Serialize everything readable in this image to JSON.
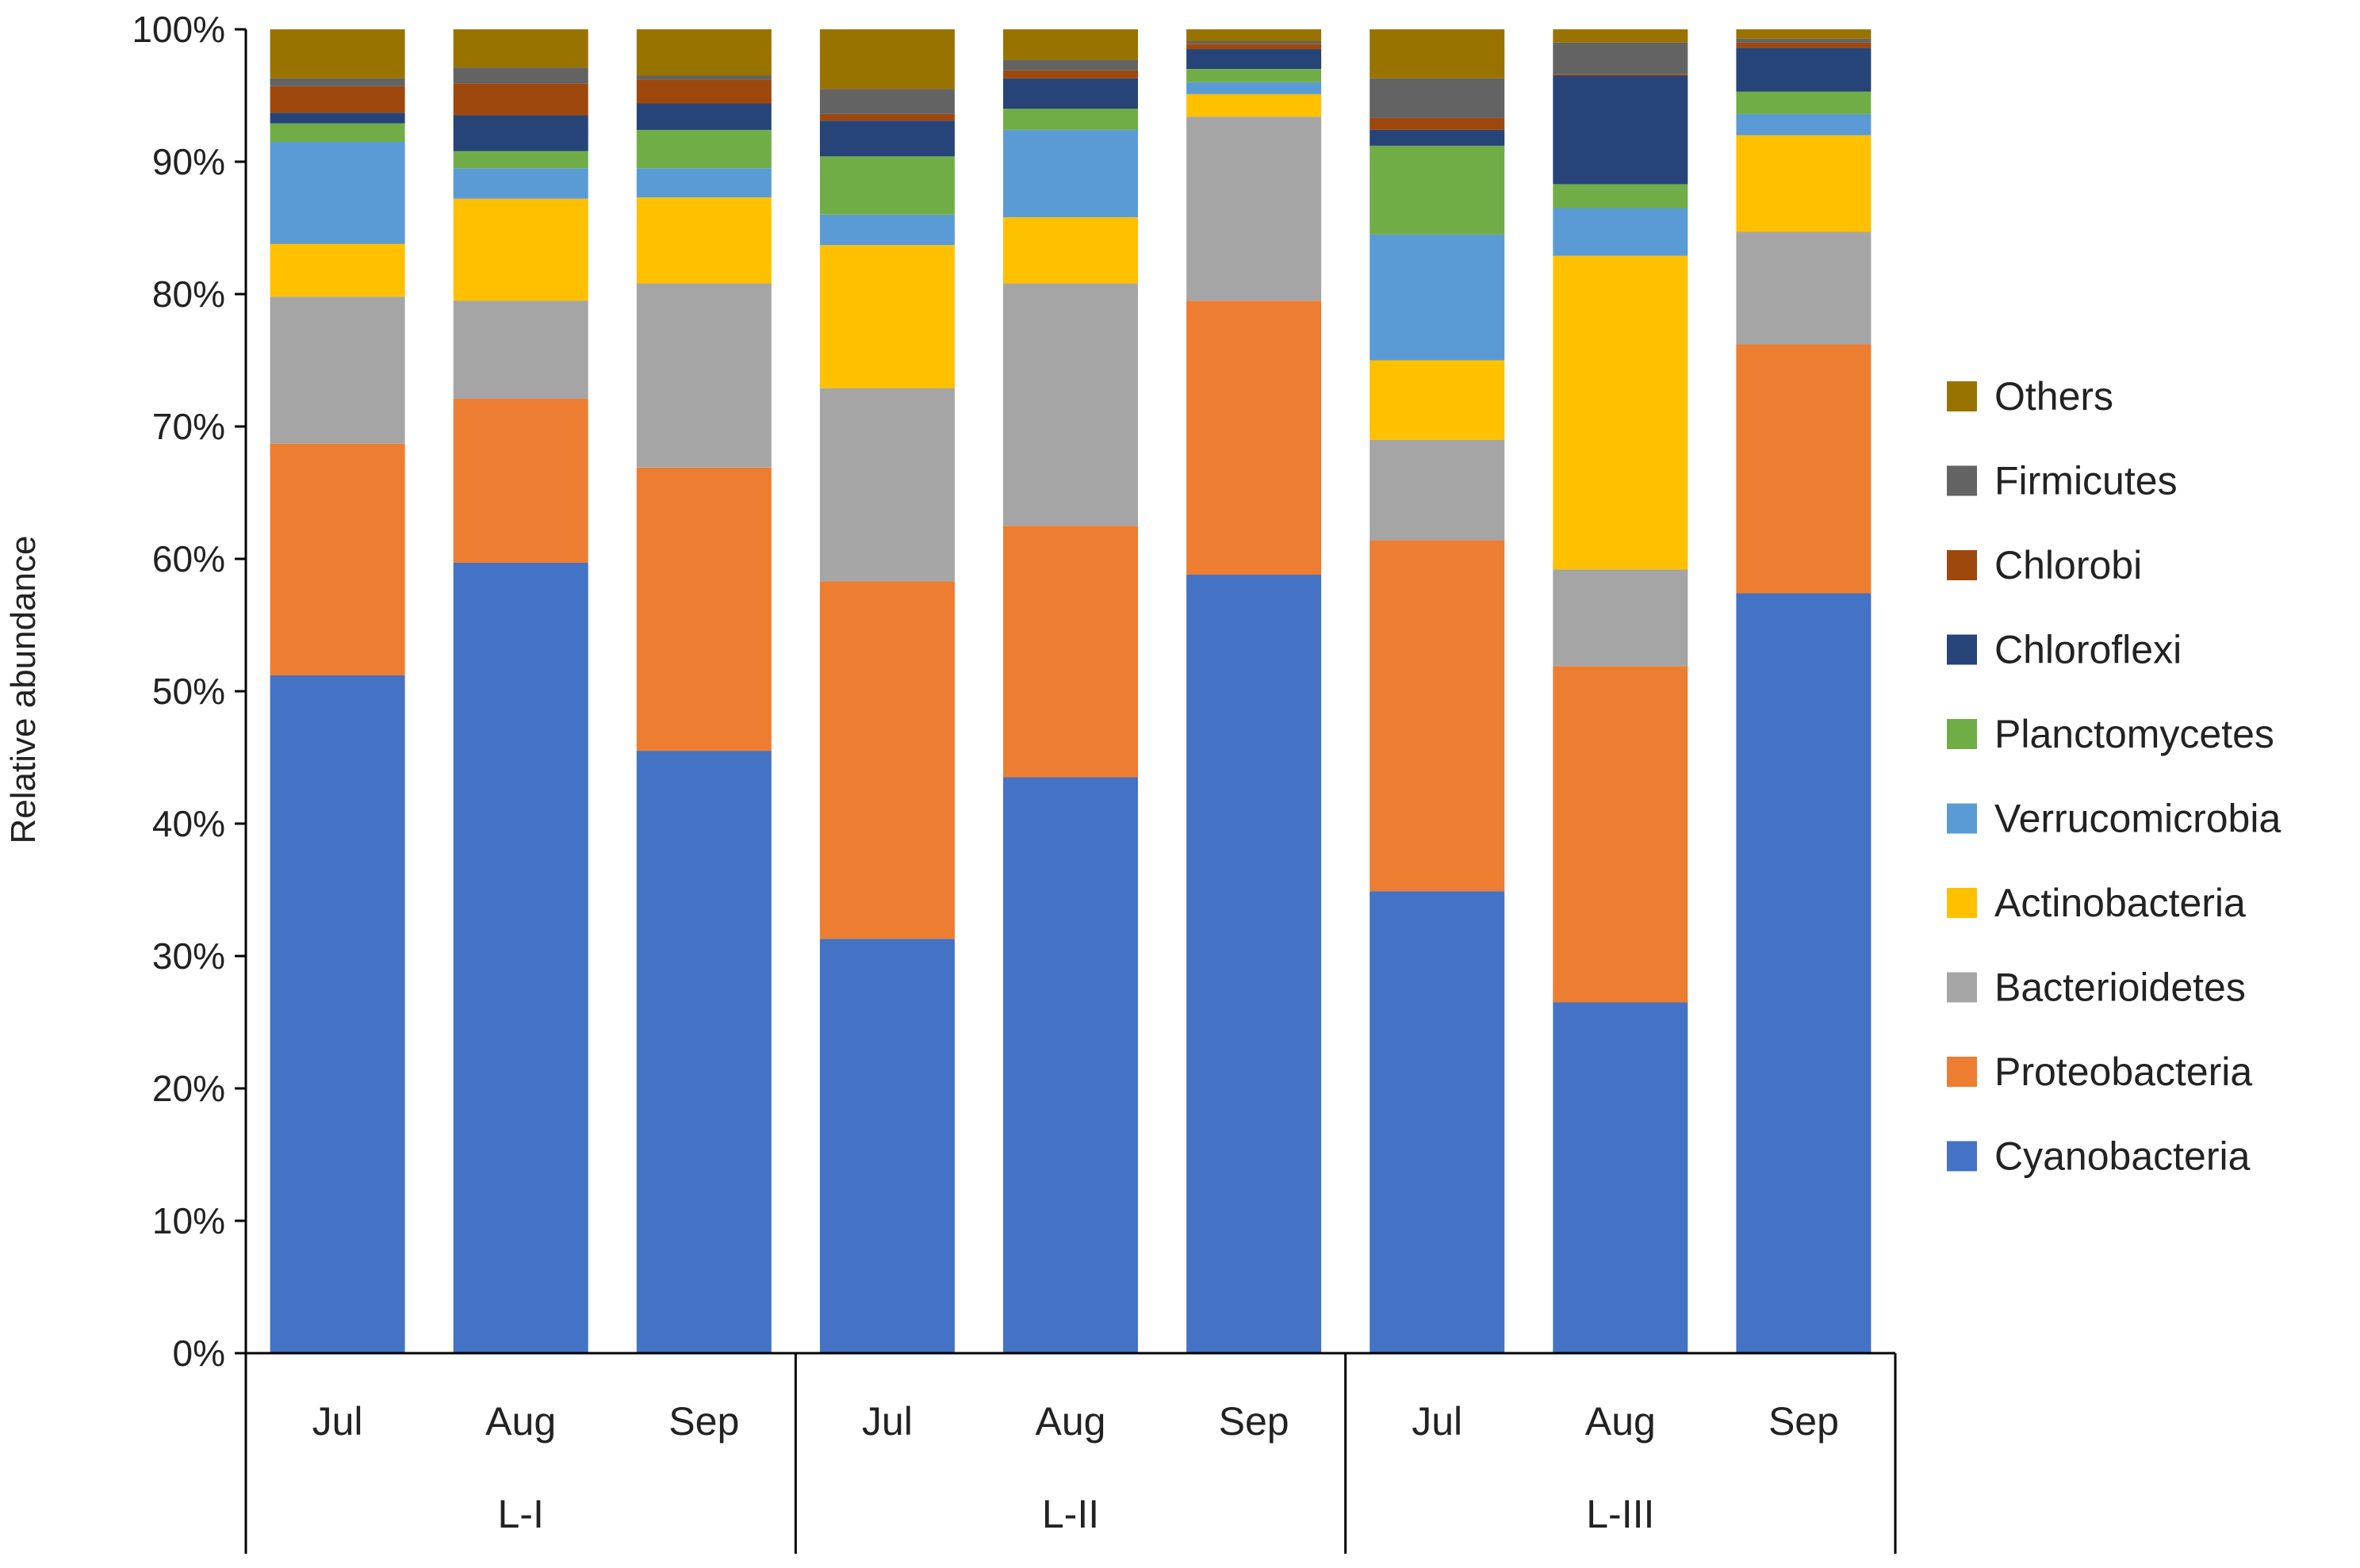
{
  "chart_data": {
    "type": "bar",
    "stacked": true,
    "normalized": true,
    "title": "",
    "xlabel": "",
    "ylabel": "Relative abundance",
    "ylim": [
      0,
      100
    ],
    "yticks": [
      0,
      10,
      20,
      30,
      40,
      50,
      60,
      70,
      80,
      90,
      100
    ],
    "ytick_labels": [
      "0%",
      "10%",
      "20%",
      "30%",
      "40%",
      "50%",
      "60%",
      "70%",
      "80%",
      "90%",
      "100%"
    ],
    "groups": [
      {
        "name": "L-I",
        "categories": [
          "Jul",
          "Aug",
          "Sep"
        ]
      },
      {
        "name": "L-II",
        "categories": [
          "Jul",
          "Aug",
          "Sep"
        ]
      },
      {
        "name": "L-III",
        "categories": [
          "Jul",
          "Aug",
          "Sep"
        ]
      }
    ],
    "categories": [
      "Jul",
      "Aug",
      "Sep",
      "Jul",
      "Aug",
      "Sep",
      "Jul",
      "Aug",
      "Sep"
    ],
    "legend_position": "right",
    "series": [
      {
        "name": "Cyanobacteria",
        "color": "#4472C4",
        "values": [
          51.2,
          59.7,
          45.5,
          31.3,
          43.5,
          58.8,
          34.9,
          26.5,
          57.4
        ]
      },
      {
        "name": "Proteobacteria",
        "color": "#ED7D31",
        "values": [
          17.5,
          12.4,
          21.4,
          27.0,
          19.0,
          20.7,
          26.5,
          25.4,
          18.8
        ]
      },
      {
        "name": "Bacterioidetes",
        "color": "#A5A5A5",
        "values": [
          11.1,
          7.4,
          13.9,
          14.6,
          18.3,
          13.9,
          7.6,
          7.3,
          8.5
        ]
      },
      {
        "name": "Actinobacteria",
        "color": "#FFC000",
        "values": [
          4.0,
          7.7,
          6.5,
          10.8,
          5.0,
          1.7,
          6.0,
          23.7,
          7.3
        ]
      },
      {
        "name": "Verrucomicrobia",
        "color": "#5B9BD5",
        "values": [
          7.7,
          2.3,
          2.2,
          2.3,
          6.6,
          0.9,
          9.5,
          3.6,
          1.6
        ]
      },
      {
        "name": "Planctomycetes",
        "color": "#70AD47",
        "values": [
          1.4,
          1.3,
          2.9,
          4.4,
          1.6,
          1.0,
          6.7,
          1.8,
          1.7
        ]
      },
      {
        "name": "Chloroflexi",
        "color": "#264478",
        "values": [
          0.8,
          2.7,
          2.0,
          2.7,
          2.3,
          1.5,
          1.2,
          8.2,
          3.3
        ]
      },
      {
        "name": "Chlorobi",
        "color": "#9E480E",
        "values": [
          2.0,
          2.4,
          1.8,
          0.5,
          0.6,
          0.4,
          0.9,
          0.1,
          0.4
        ]
      },
      {
        "name": "Firmicutes",
        "color": "#636363",
        "values": [
          0.6,
          1.2,
          0.3,
          1.9,
          0.8,
          0.2,
          3.0,
          2.4,
          0.3
        ]
      },
      {
        "name": "Others",
        "color": "#997300",
        "values": [
          3.7,
          2.9,
          3.5,
          4.5,
          2.3,
          0.9,
          3.7,
          1.0,
          0.7
        ]
      }
    ]
  }
}
